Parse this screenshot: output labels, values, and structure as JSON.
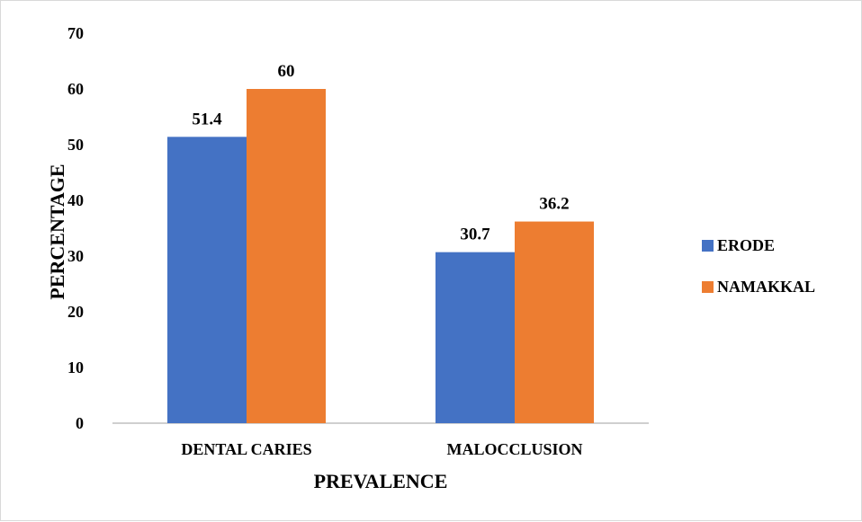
{
  "chart_data": {
    "type": "bar",
    "title": "",
    "xlabel": "PREVALENCE",
    "ylabel": "PERCENTAGE",
    "categories": [
      "DENTAL CARIES",
      "MALOCCLUSION"
    ],
    "series": [
      {
        "name": "ERODE",
        "values": [
          51.4,
          30.7
        ],
        "color": "#4472c4"
      },
      {
        "name": "NAMAKKAL",
        "values": [
          60,
          36.2
        ],
        "color": "#ed7d31"
      }
    ],
    "data_labels": [
      [
        "51.4",
        "30.7"
      ],
      [
        "60",
        "36.2"
      ]
    ],
    "ylim": [
      0,
      70
    ],
    "yticks": [
      0,
      10,
      20,
      30,
      40,
      50,
      60,
      70
    ],
    "grid": false,
    "legend_position": "right"
  }
}
